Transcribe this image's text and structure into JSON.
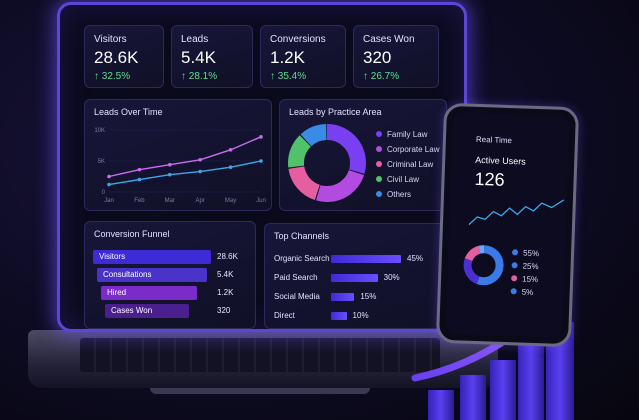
{
  "kpis": [
    {
      "label": "Visitors",
      "value": "28.6K",
      "change": "↑ 32.5%"
    },
    {
      "label": "Leads",
      "value": "5.4K",
      "change": "↑ 28.1%"
    },
    {
      "label": "Conversions",
      "value": "1.2K",
      "change": "↑ 35.4%"
    },
    {
      "label": "Cases Won",
      "value": "320",
      "change": "↑ 26.7%"
    }
  ],
  "leads_over_time": {
    "title": "Leads Over Time",
    "y_ticks": [
      "10K",
      "5K",
      "0"
    ],
    "x_ticks": [
      "Jan",
      "Feb",
      "Mar",
      "Apr",
      "May",
      "Jun"
    ]
  },
  "practice_area": {
    "title": "Leads by Practice Area",
    "legend": [
      {
        "label": "Family Law",
        "color": "#7a3ff0"
      },
      {
        "label": "Corporate Law",
        "color": "#b34be0"
      },
      {
        "label": "Criminal Law",
        "color": "#e55fa0"
      },
      {
        "label": "Civil Law",
        "color": "#4fc26a"
      },
      {
        "label": "Others",
        "color": "#3a8be8"
      }
    ]
  },
  "funnel": {
    "title": "Conversion Funnel",
    "stages": [
      {
        "label": "Visitors",
        "value": "28.6K",
        "color": "#3f2bd6"
      },
      {
        "label": "Consultations",
        "value": "5.4K",
        "color": "#4a33c9"
      },
      {
        "label": "Hired",
        "value": "1.2K",
        "color": "#7a2bc8"
      },
      {
        "label": "Cases Won",
        "value": "320",
        "color": "#4b1f8e"
      }
    ]
  },
  "channels": {
    "title": "Top Channels",
    "items": [
      {
        "label": "Organic Search",
        "value": "45%",
        "share": 45
      },
      {
        "label": "Paid Search",
        "value": "30%",
        "share": 30
      },
      {
        "label": "Social Media",
        "value": "15%",
        "share": 15
      },
      {
        "label": "Direct",
        "value": "10%",
        "share": 10
      }
    ]
  },
  "phone": {
    "header": "Real Time",
    "metric_label": "Active Users",
    "metric_value": "126",
    "donut_legend": [
      {
        "label": "55%",
        "color": "#3a7be8"
      },
      {
        "label": "25%",
        "color": "#3a7be8"
      },
      {
        "label": "15%",
        "color": "#e55fa0"
      },
      {
        "label": "5%",
        "color": "#3a7be8"
      }
    ]
  },
  "chart_data": [
    {
      "type": "line",
      "title": "Leads Over Time",
      "x": [
        "Jan",
        "Feb",
        "Mar",
        "Apr",
        "May",
        "Jun"
      ],
      "ylim": [
        0,
        10000
      ],
      "series": [
        {
          "values": [
            2500,
            3600,
            4400,
            5200,
            6800,
            8900
          ],
          "color": "#c86cf0"
        },
        {
          "values": [
            1200,
            2000,
            2800,
            3300,
            4000,
            5000
          ],
          "color": "#3aa8e8"
        }
      ]
    },
    {
      "type": "pie",
      "title": "Leads by Practice Area",
      "categories": [
        "Family Law",
        "Corporate Law",
        "Criminal Law",
        "Civil Law",
        "Others"
      ],
      "values": [
        30,
        25,
        18,
        15,
        12
      ]
    },
    {
      "type": "bar",
      "title": "Top Channels",
      "categories": [
        "Organic Search",
        "Paid Search",
        "Social Media",
        "Direct"
      ],
      "values": [
        45,
        30,
        15,
        10
      ]
    }
  ]
}
